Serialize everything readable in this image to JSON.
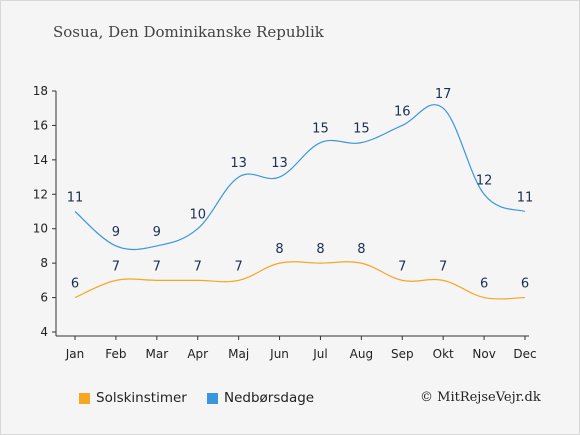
{
  "title": "Sosua, Den Dominikanske Republik",
  "credit": "© MitRejseVejr.dk",
  "colors": {
    "sun": "#f5a623",
    "rain": "#3a96dd",
    "axis": "#333333",
    "labels": "#1a3050"
  },
  "legend": {
    "sun": "Solskinstimer",
    "rain": "Nedbørsdage"
  },
  "chart_data": {
    "type": "line",
    "categories": [
      "Jan",
      "Feb",
      "Mar",
      "Apr",
      "Maj",
      "Jun",
      "Jul",
      "Aug",
      "Sep",
      "Okt",
      "Nov",
      "Dec"
    ],
    "ylim": [
      4,
      18
    ],
    "yticks": [
      4,
      6,
      8,
      10,
      12,
      14,
      16,
      18
    ],
    "grid": false,
    "legend_position": "bottom",
    "series": [
      {
        "name": "Solskinstimer",
        "color": "#f5a623",
        "values": [
          6,
          7,
          7,
          7,
          7,
          8,
          8,
          8,
          7,
          7,
          6,
          6
        ]
      },
      {
        "name": "Nedbørsdage",
        "color": "#3a96dd",
        "values": [
          11,
          9,
          9,
          10,
          13,
          13,
          15,
          15,
          16,
          17,
          12,
          11
        ]
      }
    ]
  }
}
